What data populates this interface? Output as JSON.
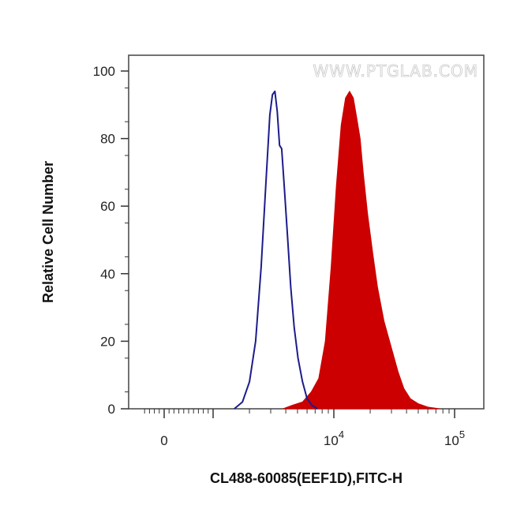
{
  "watermark": "WWW.PTGLAB.COM",
  "chart_data": {
    "type": "area",
    "xlabel": "CL488-60085(EEF1D),FITC-H",
    "ylabel": "Relative Cell Number",
    "x_scale": "biexponential (log above 10^3)",
    "ylim": [
      0,
      100
    ],
    "y_ticks": [
      0,
      20,
      40,
      60,
      80,
      100
    ],
    "x_ticks": [
      {
        "value": 0,
        "base": "0",
        "exp": ""
      },
      {
        "value": 10000,
        "base": "10",
        "exp": "4"
      },
      {
        "value": 100000,
        "base": "10",
        "exp": "5"
      }
    ],
    "grid": false,
    "series": [
      {
        "color": "#1c1c8c",
        "style": "outline",
        "x": [
          1500,
          1750,
          2000,
          2250,
          2500,
          2750,
          2950,
          3100,
          3250,
          3400,
          3550,
          3700,
          3900,
          4150,
          4400,
          4700,
          5050,
          5500,
          6000,
          6600,
          7300
        ],
        "y": [
          0,
          2,
          8,
          20,
          42,
          68,
          87,
          93,
          94,
          88,
          78,
          77,
          65,
          50,
          36,
          24,
          15,
          8,
          3,
          1,
          0
        ]
      },
      {
        "color": "#cc0000",
        "style": "filled",
        "x": [
          3800,
          4500,
          5500,
          6500,
          7500,
          8500,
          9500,
          10500,
          11500,
          12500,
          13500,
          14500,
          15500,
          16500,
          17500,
          19000,
          21000,
          23000,
          26000,
          30000,
          34000,
          38000,
          43000,
          50000,
          60000,
          75000
        ],
        "y": [
          0,
          1,
          2,
          5,
          9,
          20,
          42,
          66,
          84,
          92,
          94,
          92,
          86,
          80,
          70,
          58,
          46,
          36,
          26,
          18,
          11,
          6,
          3,
          1.5,
          0.5,
          0
        ]
      }
    ]
  }
}
